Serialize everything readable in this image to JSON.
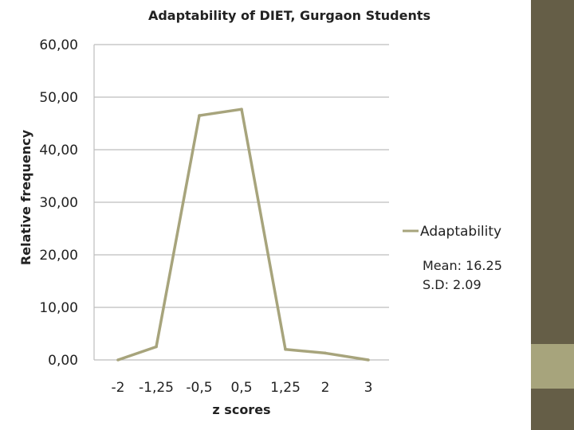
{
  "colors": {
    "line": "#a7a47c",
    "grid": "#bdbdbd",
    "sidebar_dark": "#655e47",
    "sidebar_light": "#a7a47c"
  },
  "chart_data": {
    "type": "line",
    "title": "Adaptability of DIET, Gurgaon Students",
    "xlabel": "z scores",
    "ylabel": "Relative frequency",
    "categories": [
      "-2",
      "-1,25",
      "-0,5",
      "0,5",
      "1,25",
      "2",
      "3"
    ],
    "series": [
      {
        "name": "Adaptability",
        "values": [
          0,
          2.5,
          46.5,
          47.7,
          2.0,
          1.3,
          0
        ]
      }
    ],
    "y_ticks": [
      "0,00",
      "10,00",
      "20,00",
      "30,00",
      "40,00",
      "50,00",
      "60,00"
    ],
    "ylim": [
      0,
      60
    ],
    "grid": true,
    "legend_position": "right",
    "annotation": [
      "Mean: 16.25",
      "S.D: 2.09"
    ]
  }
}
